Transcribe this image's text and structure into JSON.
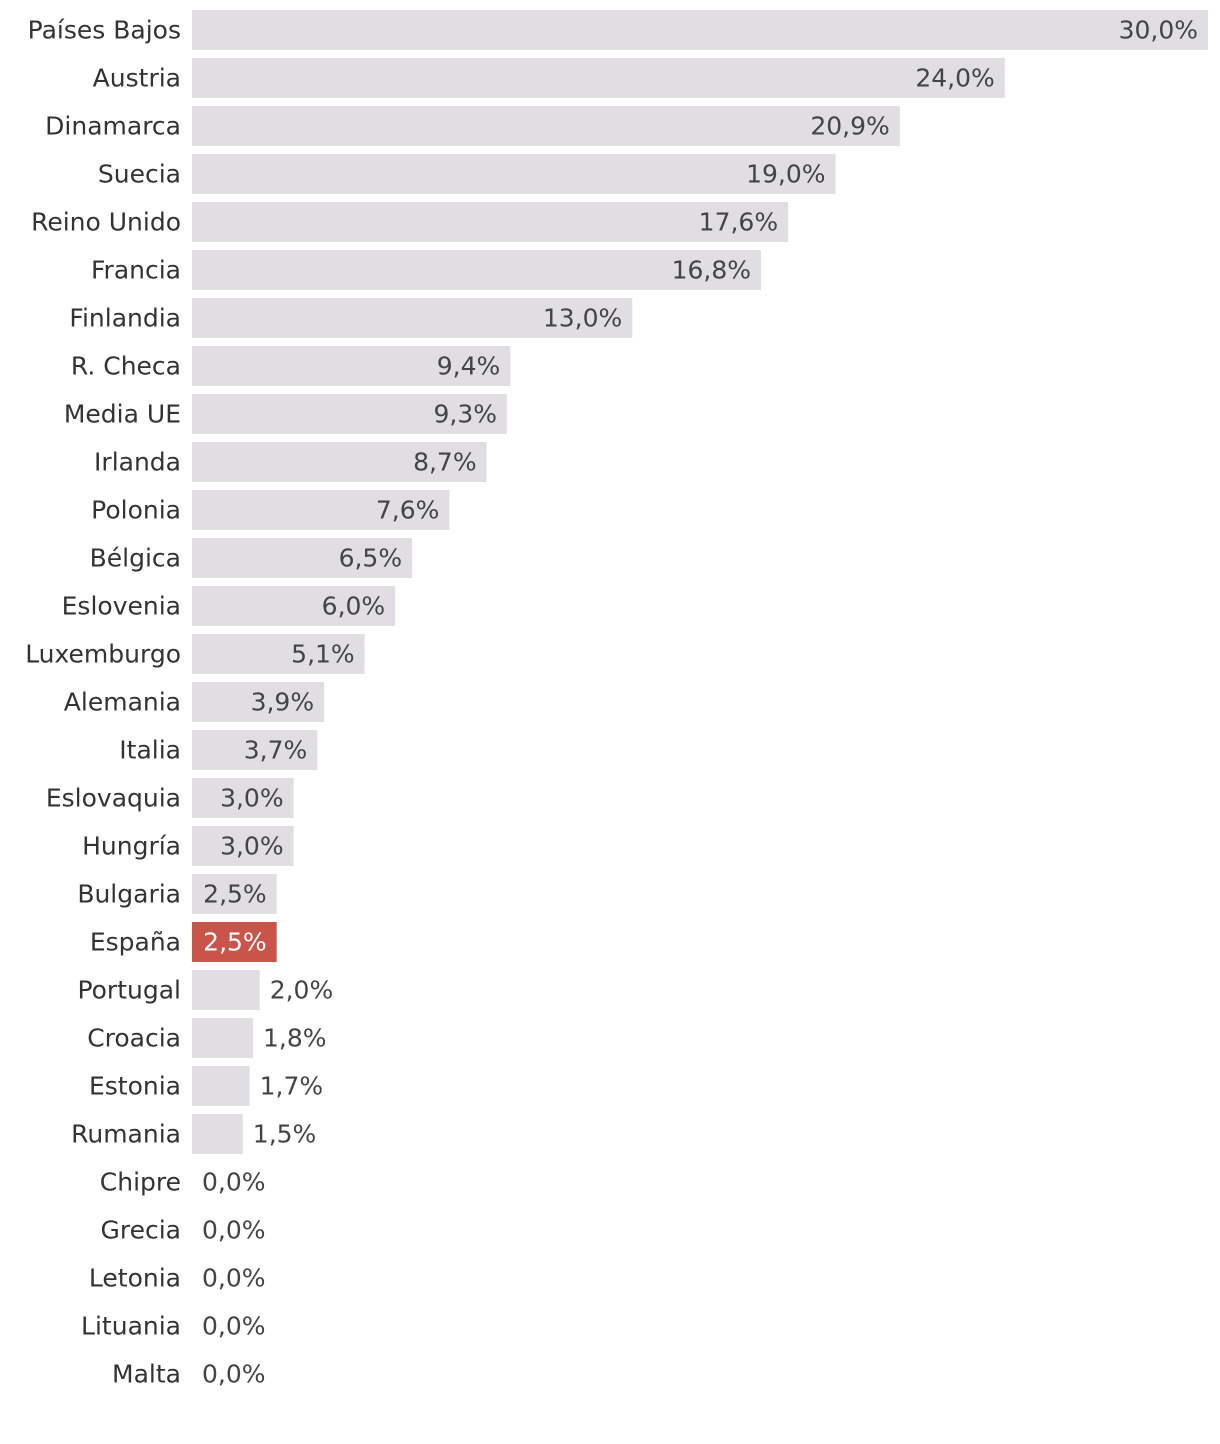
{
  "chart_data": {
    "type": "bar",
    "orientation": "horizontal",
    "categories": [
      "Países Bajos",
      "Austria",
      "Dinamarca",
      "Suecia",
      "Reino Unido",
      "Francia",
      "Finlandia",
      "R. Checa",
      "Media UE",
      "Irlanda",
      "Polonia",
      "Bélgica",
      "Eslovenia",
      "Luxemburgo",
      "Alemania",
      "Italia",
      "Eslovaquia",
      "Hungría",
      "Bulgaria",
      "España",
      "Portugal",
      "Croacia",
      "Estonia",
      "Rumania",
      "Chipre",
      "Grecia",
      "Letonia",
      "Lituania",
      "Malta"
    ],
    "values": [
      30.0,
      24.0,
      20.9,
      19.0,
      17.6,
      16.8,
      13.0,
      9.4,
      9.3,
      8.7,
      7.6,
      6.5,
      6.0,
      5.1,
      3.9,
      3.7,
      3.0,
      3.0,
      2.5,
      2.5,
      2.0,
      1.8,
      1.7,
      1.5,
      0.0,
      0.0,
      0.0,
      0.0,
      0.0
    ],
    "value_labels": [
      "30,0%",
      "24,0%",
      "20,9%",
      "19,0%",
      "17,6%",
      "16,8%",
      "13,0%",
      "9,4%",
      "9,3%",
      "8,7%",
      "7,6%",
      "6,5%",
      "6,0%",
      "5,1%",
      "3,9%",
      "3,7%",
      "3,0%",
      "3,0%",
      "2,5%",
      "2,5%",
      "2,0%",
      "1,8%",
      "1,7%",
      "1,5%",
      "0,0%",
      "0,0%",
      "0,0%",
      "0,0%",
      "0,0%"
    ],
    "highlight": "España",
    "xlim": [
      0,
      30
    ],
    "grid": false,
    "legend": "none",
    "colors": {
      "bar": "#e0dee3",
      "highlight_bar": "#c9544a",
      "label_text": "#333333",
      "value_text": "#444444",
      "highlight_value_text": "#ffffff"
    }
  }
}
